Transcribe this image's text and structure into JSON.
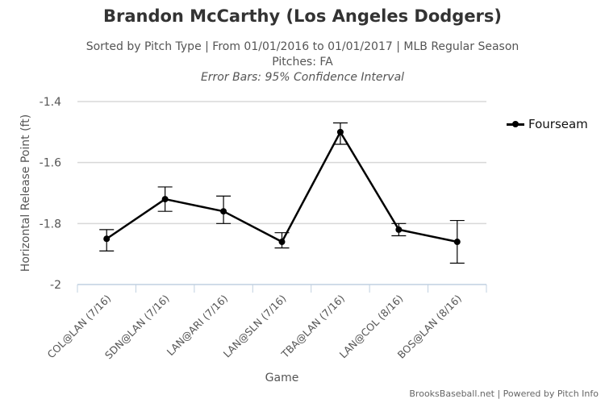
{
  "chart_data": {
    "type": "line",
    "title": "Brandon McCarthy (Los Angeles Dodgers)",
    "subtitle_lines": [
      "Sorted by Pitch Type | From 01/01/2016 to 01/01/2017 | MLB Regular Season",
      "Pitches: FA",
      "Error Bars: 95% Confidence Interval"
    ],
    "xlabel": "Game",
    "ylabel": "Horizontal Release Point (ft)",
    "ylim": [
      -2,
      -1.4
    ],
    "yticks": [
      -1.4,
      -1.6,
      -1.8,
      -2
    ],
    "ytick_labels": [
      "-1.4",
      "-1.6",
      "-1.8",
      "-2"
    ],
    "categories": [
      "COL@LAN (7/16)",
      "SDN@LAN (7/16)",
      "LAN@ARI (7/16)",
      "LAN@SLN (7/16)",
      "TBA@LAN (7/16)",
      "LAN@COL (8/16)",
      "BOS@LAN (8/16)"
    ],
    "grid": true,
    "legend_position": "right",
    "series": [
      {
        "name": "Fourseam",
        "color": "#000000",
        "values": [
          -1.85,
          -1.72,
          -1.76,
          -1.86,
          -1.5,
          -1.82,
          -1.86
        ],
        "error_low": [
          -1.89,
          -1.76,
          -1.8,
          -1.88,
          -1.54,
          -1.84,
          -1.93
        ],
        "error_high": [
          -1.82,
          -1.68,
          -1.71,
          -1.83,
          -1.47,
          -1.8,
          -1.79
        ]
      }
    ]
  },
  "credits": "BrooksBaseball.net | Powered by Pitch Info"
}
